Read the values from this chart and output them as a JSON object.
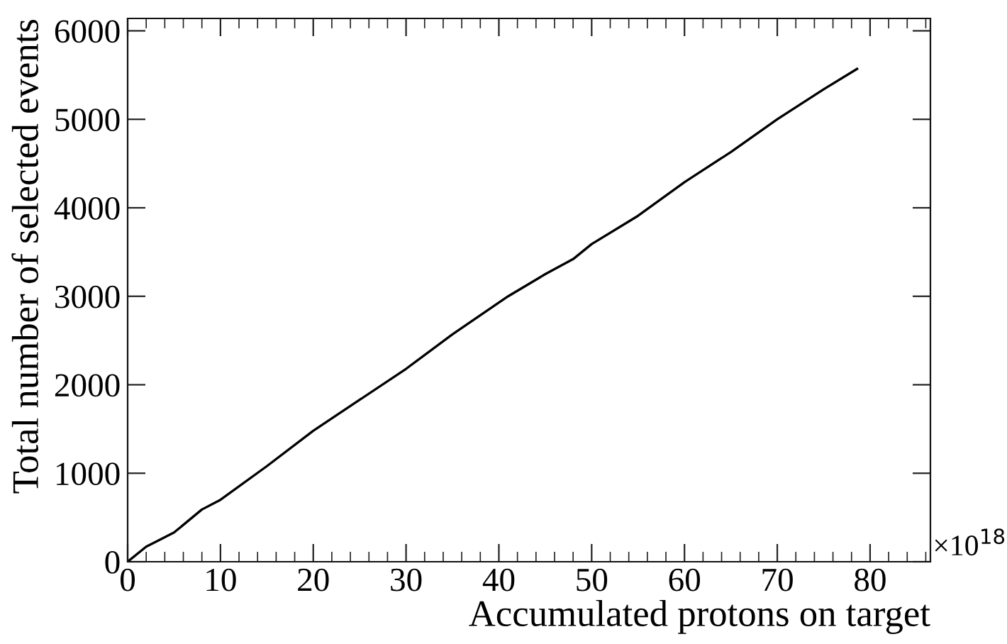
{
  "chart_data": {
    "type": "line",
    "xlabel": "Accumulated protons on target",
    "ylabel": "Total number of selected events",
    "annotations": [
      "×10$^{18}$"
    ],
    "x": [
      0,
      2,
      5,
      8,
      10,
      15,
      20,
      25,
      30,
      35,
      41,
      45,
      48,
      50,
      55,
      60,
      65,
      70,
      75,
      78.6
    ],
    "series": [
      {
        "color": "#000000",
        "values": [
          0,
          170,
          330,
          590,
          700,
          1080,
          1480,
          1830,
          2180,
          2570,
          3000,
          3250,
          3420,
          3590,
          3910,
          4290,
          4630,
          5000,
          5340,
          5570
        ]
      }
    ],
    "xlim": [
      0,
      86.5
    ],
    "ylim": [
      0,
      6140
    ],
    "xticks": [
      0,
      10,
      20,
      30,
      40,
      50,
      60,
      70,
      80
    ],
    "yticks": [
      0,
      1000,
      2000,
      3000,
      4000,
      5000,
      6000
    ],
    "grid": false,
    "marker": "none",
    "line_style": "solid"
  }
}
